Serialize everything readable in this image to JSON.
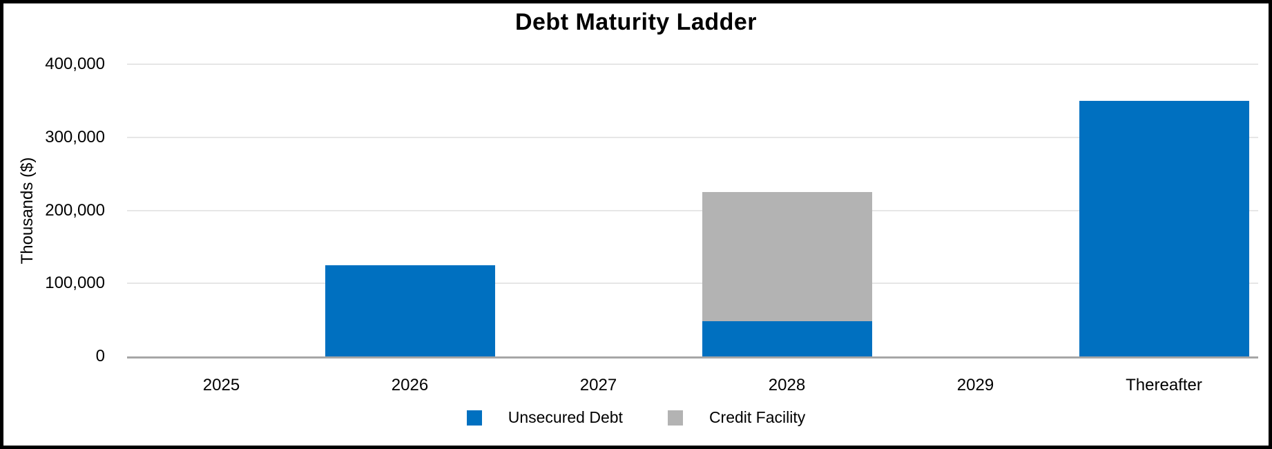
{
  "chart_data": {
    "type": "bar",
    "stacked": true,
    "title": "Debt Maturity Ladder",
    "ylabel": "Thousands ($)",
    "xlabel": "",
    "categories": [
      "2025",
      "2026",
      "2027",
      "2028",
      "2029",
      "Thereafter"
    ],
    "series": [
      {
        "name": "Unsecured Debt",
        "color": "#0070C0",
        "values": [
          0,
          125000,
          0,
          48000,
          0,
          350000
        ]
      },
      {
        "name": "Credit Facility",
        "color": "#B3B3B3",
        "values": [
          0,
          0,
          0,
          177000,
          0,
          0
        ]
      }
    ],
    "ylim": [
      0,
      400000
    ],
    "ytick_interval": 100000,
    "ytick_labels": [
      "0",
      "100,000",
      "200,000",
      "300,000",
      "400,000"
    ],
    "grid": true,
    "legend_position": "bottom",
    "colors": {
      "gridline": "#E6E6E6",
      "axis_line": "#A6A6A6",
      "frame_border": "#000000",
      "text": "#000000",
      "background": "#FFFFFF"
    }
  }
}
